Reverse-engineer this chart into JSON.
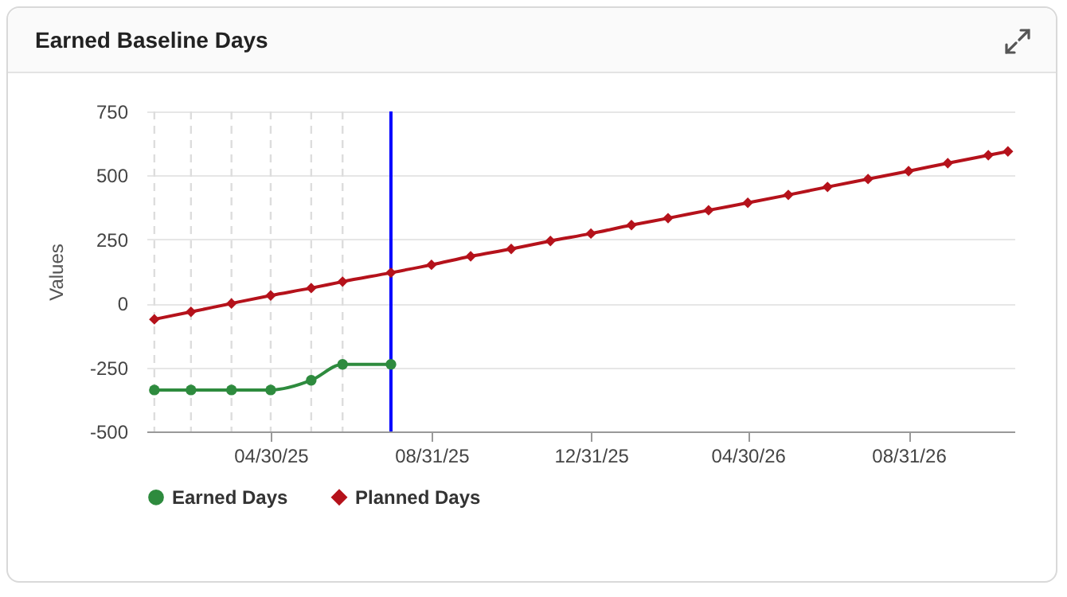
{
  "chart_data": {
    "type": "line",
    "title": "Earned Baseline Days",
    "ylabel": "Values",
    "xlim": [
      "2025-01-25",
      "2026-11-20"
    ],
    "xticks": [
      {
        "value": "2025-04-30",
        "label": "04/30/25"
      },
      {
        "value": "2025-08-31",
        "label": "08/31/25"
      },
      {
        "value": "2025-12-31",
        "label": "12/31/25"
      },
      {
        "value": "2026-04-30",
        "label": "04/30/26"
      },
      {
        "value": "2026-08-31",
        "label": "08/31/26"
      }
    ],
    "ylim": [
      -500,
      750
    ],
    "yticks": [
      -500,
      -250,
      0,
      250,
      500,
      750
    ],
    "grid": "y",
    "legend": "bottom",
    "series": [
      {
        "name": "Earned Days",
        "color": "#2e8b3e",
        "marker": "circle",
        "x": [
          "2025-01-31",
          "2025-02-28",
          "2025-03-31",
          "2025-04-30",
          "2025-05-31",
          "2025-06-24",
          "2025-07-31"
        ],
        "values": [
          -338,
          -338,
          -338,
          -338,
          -300,
          -238,
          -238
        ]
      },
      {
        "name": "Planned Days",
        "color": "#b5121b",
        "marker": "diamond",
        "x": [
          "2025-01-31",
          "2025-02-28",
          "2025-03-31",
          "2025-04-30",
          "2025-05-31",
          "2025-06-24",
          "2025-07-31",
          "2025-08-31",
          "2025-09-30",
          "2025-10-31",
          "2025-11-30",
          "2025-12-31",
          "2026-01-31",
          "2026-02-28",
          "2026-03-31",
          "2026-04-30",
          "2026-05-31",
          "2026-06-30",
          "2026-07-31",
          "2026-08-31",
          "2026-09-30",
          "2026-10-31",
          "2026-11-15"
        ],
        "values": [
          -62,
          -33,
          0,
          31,
          60,
          85,
          120,
          151,
          184,
          213,
          244,
          273,
          306,
          333,
          364,
          393,
          424,
          455,
          486,
          517,
          548,
          579,
          594
        ]
      }
    ],
    "ref_lines": [
      {
        "axis": "x",
        "value": "2025-01-31",
        "color": "#dddddd",
        "line_style": "dashed"
      },
      {
        "axis": "x",
        "value": "2025-02-28",
        "color": "#dddddd",
        "line_style": "dashed"
      },
      {
        "axis": "x",
        "value": "2025-03-31",
        "color": "#dddddd",
        "line_style": "dashed"
      },
      {
        "axis": "x",
        "value": "2025-04-30",
        "color": "#dddddd",
        "line_style": "dashed"
      },
      {
        "axis": "x",
        "value": "2025-05-31",
        "color": "#dddddd",
        "line_style": "dashed"
      },
      {
        "axis": "x",
        "value": "2025-06-24",
        "color": "#dddddd",
        "line_style": "dashed"
      },
      {
        "axis": "x",
        "value": "2025-07-31",
        "color": "#0000ff",
        "line_style": "solid"
      }
    ]
  }
}
